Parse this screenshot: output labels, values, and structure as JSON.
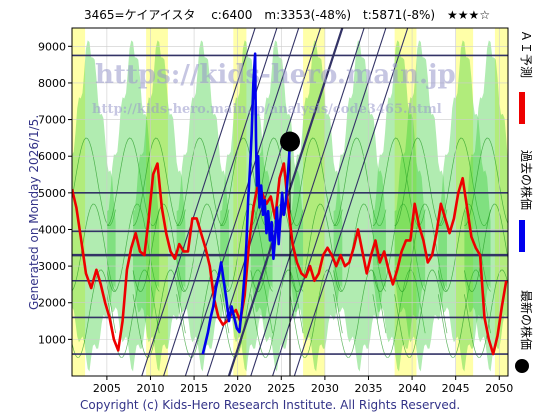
{
  "header": {
    "text": "3465=ケイアイスタ　 c:6400　m:3353(-48%)　t:5871(-8%)　★★★☆"
  },
  "side_label": "Generated on Monday 2026/1/5.",
  "footer": "Copyright (c) Kids-Hero Research Institute. All Rights Reserved.",
  "watermark": {
    "line1": "https://kids-hero.main.jp",
    "line2": "http://kids-hero.main.jp/analysis/code3465.html"
  },
  "legend": [
    {
      "label": "ＡＩ予測",
      "color": "#ee0000"
    },
    {
      "label": "過去の株価",
      "color": "#0000ee"
    },
    {
      "label": "最新の株価",
      "color": "#000000"
    }
  ],
  "colors": {
    "green_band": "#33cc33",
    "yellow_band": "#ffff99",
    "support_line": "#333366",
    "prediction": "#ee0000",
    "history": "#0000ee"
  },
  "chart_data": {
    "type": "line",
    "xlim": [
      2001,
      2051
    ],
    "ylim": [
      0,
      9500
    ],
    "x_ticks": [
      2005,
      2010,
      2015,
      2020,
      2025,
      2030,
      2035,
      2040,
      2045,
      2050
    ],
    "y_ticks": [
      1000,
      2000,
      3000,
      4000,
      5000,
      6000,
      7000,
      8000,
      9000
    ],
    "horizontal_lines": [
      600,
      1600,
      2600,
      3300,
      3950,
      5000,
      8750
    ],
    "grid": true,
    "latest_point": {
      "x": 2026.0,
      "y": 6400
    },
    "series": [
      {
        "name": "ＡＩ予測",
        "x": [
          2001.0,
          2001.5,
          2002.0,
          2002.6,
          2003.2,
          2003.8,
          2004.3,
          2004.8,
          2005.3,
          2005.8,
          2006.3,
          2006.8,
          2007.3,
          2007.8,
          2008.3,
          2008.8,
          2009.3,
          2009.8,
          2010.3,
          2010.8,
          2011.3,
          2011.8,
          2012.3,
          2012.8,
          2013.3,
          2013.8,
          2014.3,
          2014.8,
          2015.3,
          2015.8,
          2016.3,
          2016.8,
          2017.3,
          2017.8,
          2018.3,
          2018.8,
          2019.3,
          2019.8,
          2020.3,
          2020.8,
          2021.3,
          2021.8,
          2022.3,
          2022.8,
          2023.3,
          2023.8,
          2024.3,
          2024.8,
          2025.3,
          2025.8,
          2026.3,
          2026.8,
          2027.3,
          2027.8,
          2028.3,
          2028.8,
          2029.3,
          2029.8,
          2030.3,
          2030.8,
          2031.3,
          2031.8,
          2032.3,
          2032.8,
          2033.3,
          2033.8,
          2034.3,
          2034.8,
          2035.3,
          2035.8,
          2036.3,
          2036.8,
          2037.3,
          2037.8,
          2038.3,
          2038.8,
          2039.3,
          2039.8,
          2040.3,
          2040.8,
          2041.3,
          2041.8,
          2042.3,
          2042.8,
          2043.3,
          2043.8,
          2044.3,
          2044.8,
          2045.3,
          2045.8,
          2046.3,
          2046.8,
          2047.3,
          2047.8,
          2048.3,
          2048.8,
          2049.3,
          2049.8,
          2050.3,
          2050.8
        ],
        "y": [
          5100,
          4600,
          3800,
          2800,
          2400,
          2900,
          2500,
          2000,
          1600,
          1000,
          700,
          1500,
          2900,
          3500,
          3900,
          3400,
          3300,
          4300,
          5500,
          5800,
          4600,
          3900,
          3400,
          3200,
          3600,
          3400,
          3400,
          4300,
          4300,
          3900,
          3500,
          3000,
          2100,
          1600,
          1400,
          1500,
          1700,
          1800,
          1500,
          2200,
          3600,
          4600,
          5200,
          5000,
          4700,
          4900,
          4300,
          5400,
          5800,
          4600,
          3600,
          3100,
          2800,
          2700,
          3000,
          2600,
          2800,
          3300,
          3500,
          3300,
          3000,
          3300,
          3000,
          3100,
          3500,
          4000,
          3400,
          2800,
          3300,
          3700,
          3100,
          3400,
          2900,
          2500,
          2900,
          3400,
          3700,
          3700,
          4700,
          4100,
          3700,
          3100,
          3300,
          3900,
          4700,
          4300,
          3900,
          4300,
          5000,
          5400,
          4600,
          3800,
          3500,
          3300,
          1600,
          1000,
          600,
          1100,
          1900,
          2600
        ]
      },
      {
        "name": "過去の株価",
        "x": [
          2016.0,
          2016.3,
          2016.6,
          2016.9,
          2017.2,
          2017.5,
          2017.8,
          2018.1,
          2018.4,
          2018.7,
          2019.0,
          2019.3,
          2019.6,
          2019.9,
          2020.2,
          2020.5,
          2020.8,
          2021.0,
          2021.2,
          2021.4,
          2021.6,
          2021.8,
          2022.0,
          2022.1,
          2022.2,
          2022.35,
          2022.5,
          2022.7,
          2022.9,
          2023.1,
          2023.3,
          2023.5,
          2023.7,
          2023.9,
          2024.1,
          2024.3,
          2024.5,
          2024.7,
          2024.9,
          2025.1,
          2025.3,
          2025.5,
          2025.7,
          2025.9,
          2026.0
        ],
        "y": [
          600,
          900,
          1200,
          1600,
          1900,
          2400,
          2700,
          3100,
          2600,
          2100,
          1500,
          1900,
          1600,
          1300,
          1200,
          1900,
          2800,
          3600,
          4800,
          5600,
          6600,
          8000,
          8800,
          6500,
          5200,
          6000,
          4600,
          5200,
          4400,
          4800,
          3900,
          4500,
          3700,
          4200,
          3200,
          3800,
          4600,
          3600,
          4300,
          5000,
          4400,
          4700,
          5300,
          6000,
          6400
        ]
      }
    ]
  }
}
